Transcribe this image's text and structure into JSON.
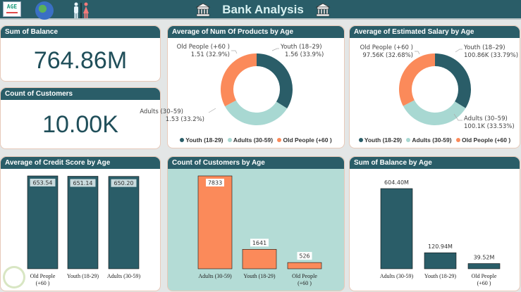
{
  "header": {
    "title": "Bank Analysis",
    "age_logo_text": "AGE",
    "icons": [
      "age-logo-icon",
      "globe-icon",
      "gender-icon",
      "bank-icon",
      "bank-icon"
    ]
  },
  "colors": {
    "teal_dark": "#2a5d68",
    "teal_light": "#a8d8d2",
    "orange": "#fb8a5a",
    "kpi_text": "#1f4e59"
  },
  "kpis": [
    {
      "title": "Sum of Balance",
      "value": "764.86M"
    },
    {
      "title": "Count of Customers",
      "value": "10.00K"
    }
  ],
  "donuts": [
    {
      "title": "Average of Num Of Products by Age",
      "slices": [
        {
          "name": "Youth (18-29)",
          "label_name": "Youth (18–29)",
          "value": 1.56,
          "label": "1.56 (33.9%)",
          "pct": 33.9
        },
        {
          "name": "Adults (30-59)",
          "label_name": "Adults (30–59)",
          "value": 1.53,
          "label": "1.53 (33.2%)",
          "pct": 33.2
        },
        {
          "name": "Old People (+60 )",
          "label_name": "Old People (+60 )",
          "value": 1.51,
          "label": "1.51 (32.9%)",
          "pct": 32.9
        }
      ]
    },
    {
      "title": "Average of Estimated Salary by Age",
      "slices": [
        {
          "name": "Youth (18-29)",
          "label_name": "Youth (18–29)",
          "value": 100.86,
          "label": "100.86K (33.79%)",
          "pct": 33.79
        },
        {
          "name": "Adults (30-59)",
          "label_name": "Adults (30–59)",
          "value": 100.1,
          "label": "100.1K (33.53%)",
          "pct": 33.53
        },
        {
          "name": "Old People (+60 )",
          "label_name": "Old People (+60 )",
          "value": 97.56,
          "label": "97.56K (32.68%)",
          "pct": 32.68
        }
      ]
    }
  ],
  "chart_data": [
    {
      "type": "pie",
      "title": "Average of Num Of Products by Age",
      "categories": [
        "Youth (18-29)",
        "Adults (30-59)",
        "Old People (+60 )"
      ],
      "values": [
        1.56,
        1.53,
        1.51
      ],
      "percent": [
        33.9,
        33.2,
        32.9
      ],
      "legend": "bottom"
    },
    {
      "type": "pie",
      "title": "Average of Estimated Salary by Age",
      "categories": [
        "Youth (18-29)",
        "Adults (30-59)",
        "Old People (+60 )"
      ],
      "values": [
        100.86,
        100.1,
        97.56
      ],
      "percent": [
        33.79,
        33.53,
        32.68
      ],
      "legend": "bottom"
    },
    {
      "type": "bar",
      "title": "Average of Credit Score by Age",
      "categories": [
        "Old People (+60 )",
        "Youth (18-29)",
        "Adults (30-59)"
      ],
      "values": [
        653.54,
        651.14,
        650.2
      ],
      "labels": [
        "653.54",
        "651.14",
        "650.20"
      ],
      "ylim": [
        0,
        653.54
      ]
    },
    {
      "type": "bar",
      "title": "Count of Customers by Age",
      "categories": [
        "Adults (30-59)",
        "Youth (18-29)",
        "Old People (+60 )"
      ],
      "values": [
        7833,
        1641,
        526
      ],
      "labels": [
        "7833",
        "1641",
        "526"
      ],
      "ylim": [
        0,
        7833
      ]
    },
    {
      "type": "bar",
      "title": "Sum of Balance by Age",
      "categories": [
        "Adults (30-59)",
        "Youth (18-29)",
        "Old People (+60 )"
      ],
      "values": [
        604.4,
        120.94,
        39.52
      ],
      "labels": [
        "604.40M",
        "120.94M",
        "39.52M"
      ],
      "ylim": [
        0,
        604.4
      ]
    }
  ]
}
